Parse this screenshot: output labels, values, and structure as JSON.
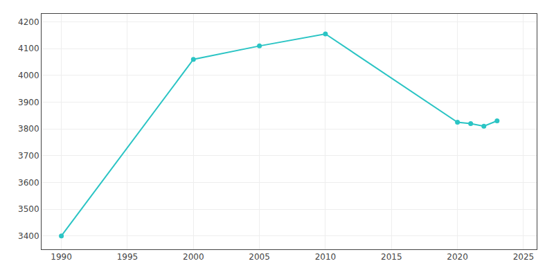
{
  "chart_data": {
    "type": "line",
    "x": [
      1990,
      2000,
      2005,
      2010,
      2020,
      2021,
      2022,
      2023
    ],
    "values": [
      3400,
      4060,
      4110,
      4155,
      3825,
      3820,
      3810,
      3830
    ],
    "color": "#2AC4C4",
    "marker": "circle",
    "xlim": [
      1988.5,
      2026
    ],
    "ylim": [
      3350,
      4230
    ],
    "xticks": [
      1990,
      1995,
      2000,
      2005,
      2010,
      2015,
      2020,
      2025
    ],
    "yticks": [
      3400,
      3500,
      3600,
      3700,
      3800,
      3900,
      4000,
      4100,
      4200
    ],
    "grid": true
  }
}
